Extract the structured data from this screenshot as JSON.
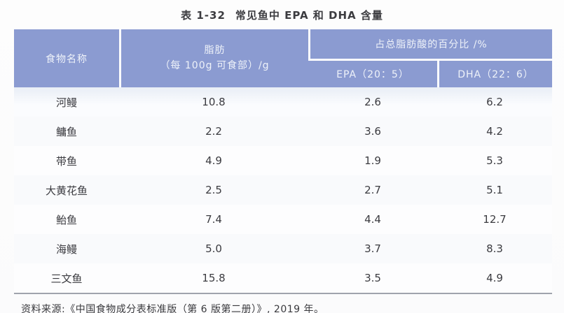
{
  "title": {
    "prefix": "表 1-32",
    "text": "常见鱼中 EPA 和 DHA 含量"
  },
  "table": {
    "header": {
      "food_name": "食物名称",
      "fat_line1": "脂肪",
      "fat_line2": "（每 100g 可食部）/g",
      "pct_group": "占总脂肪酸的百分比 /%",
      "epa": "EPA（20：5）",
      "dha": "DHA（22：6）"
    },
    "rows": [
      {
        "name": "河鳗",
        "fat": "10.8",
        "epa": "2.6",
        "dha": "6.2"
      },
      {
        "name": "鳙鱼",
        "fat": "2.2",
        "epa": "3.6",
        "dha": "4.2"
      },
      {
        "name": "带鱼",
        "fat": "4.9",
        "epa": "1.9",
        "dha": "5.3"
      },
      {
        "name": "大黄花鱼",
        "fat": "2.5",
        "epa": "2.7",
        "dha": "5.1"
      },
      {
        "name": "鲐鱼",
        "fat": "7.4",
        "epa": "4.4",
        "dha": "12.7"
      },
      {
        "name": "海鳗",
        "fat": "5.0",
        "epa": "3.7",
        "dha": "8.3"
      },
      {
        "name": "三文鱼",
        "fat": "15.8",
        "epa": "3.5",
        "dha": "4.9"
      }
    ]
  },
  "source": "资料来源:《中国食物成分表标准版（第 6 版第二册）》, 2019 年。",
  "colors": {
    "header_bg": "#8b9bd1",
    "header_text": "#eef2f9",
    "body_text": "#3b3b40"
  }
}
